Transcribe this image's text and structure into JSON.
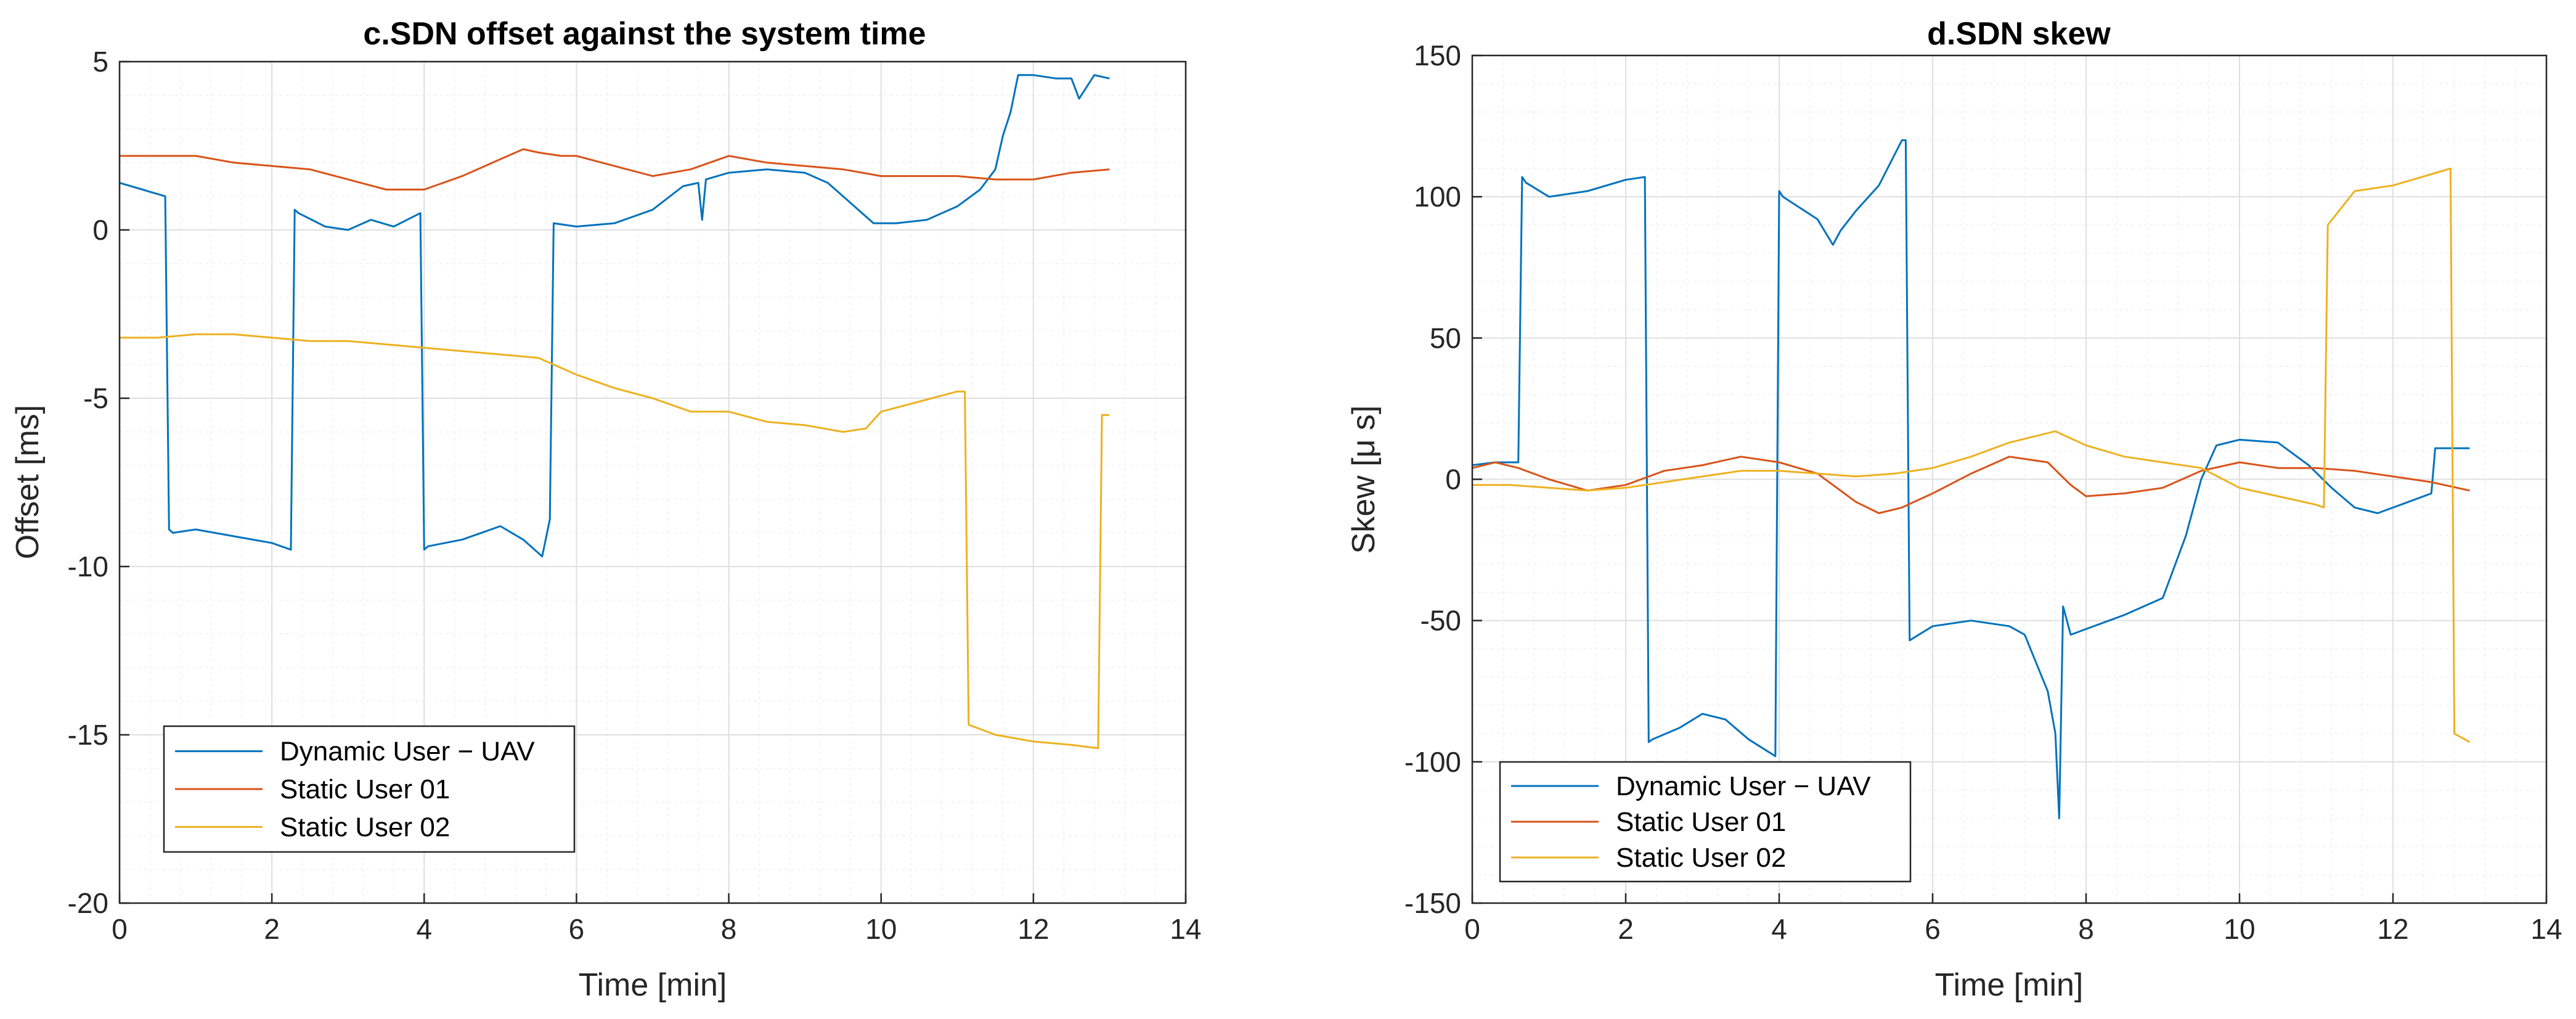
{
  "chart_data": [
    {
      "type": "line",
      "title": "c.SDN offset against the system time",
      "xlabel": "Time [min]",
      "ylabel": "Offset [ms]",
      "xlim": [
        0,
        14
      ],
      "ylim": [
        -20,
        5
      ],
      "xticks": [
        0,
        2,
        4,
        6,
        8,
        10,
        12,
        14
      ],
      "xtick_labels": [
        "0",
        "2",
        "4",
        "6",
        "8",
        "10",
        "12",
        "14"
      ],
      "yticks": [
        -20,
        -15,
        -10,
        -5,
        0,
        5
      ],
      "ytick_labels": [
        "-20",
        "-15",
        "-10",
        "-5",
        "0",
        "5"
      ],
      "grid": true,
      "legend_position": "bottom-left",
      "series": [
        {
          "name": "Dynamic User − UAV",
          "color": "#0072BD",
          "x": [
            0,
            0.3,
            0.6,
            0.65,
            0.7,
            1.0,
            1.5,
            2.0,
            2.25,
            2.3,
            2.35,
            2.7,
            3.0,
            3.3,
            3.6,
            3.95,
            4.0,
            4.05,
            4.5,
            5.0,
            5.3,
            5.55,
            5.65,
            5.7,
            6.0,
            6.5,
            7.0,
            7.4,
            7.6,
            7.65,
            7.7,
            8.0,
            8.5,
            9.0,
            9.3,
            9.6,
            9.9,
            10.2,
            10.6,
            11.0,
            11.3,
            11.5,
            11.6,
            11.7,
            11.8,
            12.0,
            12.3,
            12.5,
            12.6,
            12.8,
            13.0
          ],
          "y": [
            1.4,
            1.2,
            1.0,
            -8.9,
            -9.0,
            -8.9,
            -9.1,
            -9.3,
            -9.5,
            0.6,
            0.5,
            0.1,
            0.0,
            0.3,
            0.1,
            0.5,
            -9.5,
            -9.4,
            -9.2,
            -8.8,
            -9.2,
            -9.7,
            -8.6,
            0.2,
            0.1,
            0.2,
            0.6,
            1.3,
            1.4,
            0.3,
            1.5,
            1.7,
            1.8,
            1.7,
            1.4,
            0.8,
            0.2,
            0.2,
            0.3,
            0.7,
            1.2,
            1.8,
            2.8,
            3.5,
            4.6,
            4.6,
            4.5,
            4.5,
            3.9,
            4.6,
            4.5
          ]
        },
        {
          "name": "Static User 01",
          "color": "#D95319",
          "x": [
            0,
            0.5,
            1.0,
            1.5,
            2.0,
            2.5,
            3.0,
            3.5,
            4.0,
            4.5,
            5.0,
            5.3,
            5.5,
            5.8,
            6.0,
            6.5,
            7.0,
            7.5,
            8.0,
            8.5,
            9.0,
            9.5,
            10.0,
            10.5,
            11.0,
            11.5,
            12.0,
            12.5,
            13.0
          ],
          "y": [
            2.2,
            2.2,
            2.2,
            2.0,
            1.9,
            1.8,
            1.5,
            1.2,
            1.2,
            1.6,
            2.1,
            2.4,
            2.3,
            2.2,
            2.2,
            1.9,
            1.6,
            1.8,
            2.2,
            2.0,
            1.9,
            1.8,
            1.6,
            1.6,
            1.6,
            1.5,
            1.5,
            1.7,
            1.8
          ]
        },
        {
          "name": "Static User 02",
          "color": "#EDB120",
          "x": [
            0,
            0.5,
            1.0,
            1.5,
            2.0,
            2.5,
            3.0,
            3.5,
            4.0,
            4.5,
            5.0,
            5.5,
            6.0,
            6.5,
            7.0,
            7.5,
            8.0,
            8.5,
            9.0,
            9.5,
            9.8,
            10.0,
            10.5,
            11.0,
            11.1,
            11.15,
            11.5,
            12.0,
            12.5,
            12.85,
            12.9,
            13.0
          ],
          "y": [
            -3.2,
            -3.2,
            -3.1,
            -3.1,
            -3.2,
            -3.3,
            -3.3,
            -3.4,
            -3.5,
            -3.6,
            -3.7,
            -3.8,
            -4.3,
            -4.7,
            -5.0,
            -5.4,
            -5.4,
            -5.7,
            -5.8,
            -6.0,
            -5.9,
            -5.4,
            -5.1,
            -4.8,
            -4.8,
            -14.7,
            -15.0,
            -15.2,
            -15.3,
            -15.4,
            -5.5,
            -5.5
          ]
        }
      ]
    },
    {
      "type": "line",
      "title": "d.SDN skew",
      "xlabel": "Time [min]",
      "ylabel": "Skew [μ s]",
      "xlim": [
        0,
        14
      ],
      "ylim": [
        -150,
        150
      ],
      "xticks": [
        0,
        2,
        4,
        6,
        8,
        10,
        12,
        14
      ],
      "xtick_labels": [
        "0",
        "2",
        "4",
        "6",
        "8",
        "10",
        "12",
        "14"
      ],
      "yticks": [
        -150,
        -100,
        -50,
        0,
        50,
        100,
        150
      ],
      "ytick_labels": [
        "-150",
        "-100",
        "-50",
        "0",
        "50",
        "100",
        "150"
      ],
      "grid": true,
      "legend_position": "bottom-left",
      "series": [
        {
          "name": "Dynamic User − UAV",
          "color": "#0072BD",
          "x": [
            0,
            0.3,
            0.6,
            0.65,
            0.7,
            1.0,
            1.5,
            2.0,
            2.25,
            2.3,
            2.35,
            2.7,
            3.0,
            3.3,
            3.6,
            3.95,
            4.0,
            4.05,
            4.5,
            4.7,
            4.8,
            5.0,
            5.3,
            5.6,
            5.65,
            5.7,
            6.0,
            6.5,
            7.0,
            7.2,
            7.5,
            7.6,
            7.65,
            7.7,
            7.8,
            8.0,
            8.5,
            9.0,
            9.3,
            9.5,
            9.7,
            10.0,
            10.5,
            10.9,
            11.2,
            11.5,
            11.8,
            12.2,
            12.5,
            12.55,
            12.6,
            13.0
          ],
          "y": [
            5,
            6,
            6,
            107,
            105,
            100,
            102,
            106,
            107,
            -93,
            -92,
            -88,
            -83,
            -85,
            -92,
            -98,
            102,
            100,
            92,
            83,
            88,
            95,
            104,
            120,
            120,
            -57,
            -52,
            -50,
            -52,
            -55,
            -75,
            -90,
            -120,
            -45,
            -55,
            -53,
            -48,
            -42,
            -20,
            0,
            12,
            14,
            13,
            5,
            -3,
            -10,
            -12,
            -8,
            -5,
            11,
            11,
            11
          ]
        },
        {
          "name": "Static User 01",
          "color": "#D95319",
          "x": [
            0,
            0.3,
            0.6,
            1.0,
            1.5,
            2.0,
            2.5,
            3.0,
            3.5,
            4.0,
            4.5,
            5.0,
            5.3,
            5.6,
            6.0,
            6.5,
            7.0,
            7.5,
            7.8,
            8.0,
            8.5,
            9.0,
            9.5,
            10.0,
            10.5,
            11.0,
            11.5,
            12.0,
            12.5,
            13.0
          ],
          "y": [
            4,
            6,
            4,
            0,
            -4,
            -2,
            3,
            5,
            8,
            6,
            2,
            -8,
            -12,
            -10,
            -5,
            2,
            8,
            6,
            -2,
            -6,
            -5,
            -3,
            3,
            6,
            4,
            4,
            3,
            1,
            -1,
            -4
          ]
        },
        {
          "name": "Static User 02",
          "color": "#EDB120",
          "x": [
            0,
            0.5,
            1.0,
            1.5,
            2.0,
            2.5,
            3.0,
            3.5,
            4.0,
            4.5,
            5.0,
            5.5,
            6.0,
            6.5,
            7.0,
            7.6,
            8.0,
            8.5,
            9.0,
            9.5,
            10.0,
            10.5,
            11.0,
            11.1,
            11.15,
            11.5,
            12.0,
            12.5,
            12.75,
            12.8,
            13.0
          ],
          "y": [
            -2,
            -2,
            -3,
            -4,
            -3,
            -1,
            1,
            3,
            3,
            2,
            1,
            2,
            4,
            8,
            13,
            17,
            12,
            8,
            6,
            4,
            -3,
            -6,
            -9,
            -10,
            90,
            102,
            104,
            108,
            110,
            -90,
            -93
          ]
        }
      ]
    }
  ]
}
